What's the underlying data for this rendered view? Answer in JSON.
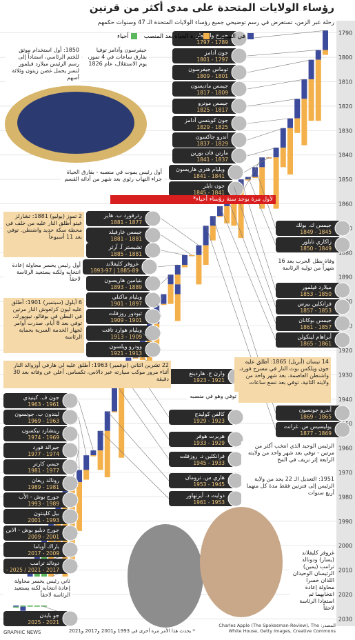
{
  "header": {
    "title": "رؤساء الولايات المتحدة على مدى أكثر من قرنين",
    "subtitle": "رحلة عبر الزمن، تستعرض في رسم توضيحي جميع رؤساء الولايات المتحدة الـ 47 وسنوات حكمهم"
  },
  "legend": [
    {
      "label": "في المنصب",
      "color": "#3d4b9c"
    },
    {
      "label": "فترة الحياة بعد المنصب",
      "color": "#f3b04b"
    },
    {
      "label": "أحياء",
      "color": "#5cb85c"
    }
  ],
  "timeline": {
    "ylim": [
      1785,
      2033
    ],
    "yticks": [
      1790,
      1800,
      1810,
      1820,
      1830,
      1840,
      1850,
      1860,
      1870,
      1880,
      1890,
      1900,
      1910,
      1920,
      1930,
      1940,
      1950,
      1960,
      1970,
      1980,
      1990,
      2000,
      2010,
      2020,
      2030
    ]
  },
  "presidents": [
    {
      "name": "جورج واشنطن",
      "years": "1789 - 1797",
      "terms": [
        [
          1789,
          1797
        ]
      ],
      "died": 1799
    },
    {
      "name": "جون آدامز",
      "years": "1797 - 1801",
      "terms": [
        [
          1797,
          1801
        ]
      ],
      "died": 1826
    },
    {
      "name": "توماس جيفرسون",
      "years": "1801 - 1809",
      "terms": [
        [
          1801,
          1809
        ]
      ],
      "died": 1826
    },
    {
      "name": "جيمس ماديسون",
      "years": "1809 - 1817",
      "terms": [
        [
          1809,
          1817
        ]
      ],
      "died": 1836
    },
    {
      "name": "جيمس مونرو",
      "years": "1817 - 1825",
      "terms": [
        [
          1817,
          1825
        ]
      ],
      "died": 1831
    },
    {
      "name": "جون كوينسي آدامز",
      "years": "1825 - 1829",
      "terms": [
        [
          1825,
          1829
        ]
      ],
      "died": 1848
    },
    {
      "name": "أندرو جاكسون",
      "years": "1829 - 1837",
      "terms": [
        [
          1829,
          1837
        ]
      ],
      "died": 1845
    },
    {
      "name": "مارتن فان بورين",
      "years": "1837 - 1841",
      "terms": [
        [
          1837,
          1841
        ]
      ],
      "died": 1862
    },
    {
      "name": "ويليام هنري هاريسون",
      "years": "1841 - 1841",
      "terms": [
        [
          1841,
          1841
        ]
      ],
      "died": 1841
    },
    {
      "name": "جون تايلر",
      "years": "1841 - 1845",
      "terms": [
        [
          1841,
          1845
        ]
      ],
      "died": 1862
    },
    {
      "name": "جيمس ك. بولك",
      "years": "1845 - 1849",
      "terms": [
        [
          1845,
          1849
        ]
      ],
      "died": 1849
    },
    {
      "name": "زاكاري تايلور",
      "years": "1849 - 1850",
      "terms": [
        [
          1849,
          1850
        ]
      ],
      "died": 1850
    },
    {
      "name": "ميلارد فيلمور",
      "years": "1850 - 1853",
      "terms": [
        [
          1850,
          1853
        ]
      ],
      "died": 1874
    },
    {
      "name": "فرانكلين بيرس",
      "years": "1853 - 1857",
      "terms": [
        [
          1853,
          1857
        ]
      ],
      "died": 1869
    },
    {
      "name": "جيمس بوكانان",
      "years": "1857 - 1861",
      "terms": [
        [
          1857,
          1861
        ]
      ],
      "died": 1868
    },
    {
      "name": "أبراهام لينكولن",
      "years": "1861 - 1865",
      "terms": [
        [
          1861,
          1865
        ]
      ],
      "died": 1865
    },
    {
      "name": "أندرو جونسون",
      "years": "1865 - 1869",
      "terms": [
        [
          1865,
          1869
        ]
      ],
      "died": 1875
    },
    {
      "name": "يوليسيس س. غرانت",
      "years": "1869 - 1877",
      "terms": [
        [
          1869,
          1877
        ]
      ],
      "died": 1885
    },
    {
      "name": "رذرفورد ب. هايز",
      "years": "1877 - 1881",
      "terms": [
        [
          1877,
          1881
        ]
      ],
      "died": 1893
    },
    {
      "name": "جيمس غارفيلد",
      "years": "1881 - 1881",
      "terms": [
        [
          1881,
          1881
        ]
      ],
      "died": 1881
    },
    {
      "name": "تشيستر آ. آرثر",
      "years": "1881 - 1885",
      "terms": [
        [
          1881,
          1885
        ]
      ],
      "died": 1886
    },
    {
      "name": "غروفر كليفلاند",
      "years": "1885-89 | 1893-97",
      "terms": [
        [
          1885,
          1889
        ],
        [
          1893,
          1897
        ]
      ],
      "died": 1908
    },
    {
      "name": "بنيامين هاريسون",
      "years": "1889 - 1893",
      "terms": [
        [
          1889,
          1893
        ]
      ],
      "died": 1901
    },
    {
      "name": "ويليام ماكنلي",
      "years": "1897 - 1901",
      "terms": [
        [
          1897,
          1901
        ]
      ],
      "died": 1901
    },
    {
      "name": "ثيودور روزفلت",
      "years": "1901 - 1909",
      "terms": [
        [
          1901,
          1909
        ]
      ],
      "died": 1919
    },
    {
      "name": "ويليام هوارد تافت",
      "years": "1909 - 1913",
      "terms": [
        [
          1909,
          1913
        ]
      ],
      "died": 1930
    },
    {
      "name": "وودرو ويلسون",
      "years": "1913 - 1921",
      "terms": [
        [
          1913,
          1921
        ]
      ],
      "died": 1924
    },
    {
      "name": "وارن ج. هاردينغ",
      "years": "1921 - 1923",
      "terms": [
        [
          1921,
          1923
        ]
      ],
      "died": 1923
    },
    {
      "name": "كالفن كوليدج",
      "years": "1923 - 1929",
      "terms": [
        [
          1923,
          1929
        ]
      ],
      "died": 1933
    },
    {
      "name": "هربرت هوفر",
      "years": "1929 - 1933",
      "terms": [
        [
          1929,
          1933
        ]
      ],
      "died": 1964
    },
    {
      "name": "فرانكلين د. روزفلت",
      "years": "1933 - 1945",
      "terms": [
        [
          1933,
          1945
        ]
      ],
      "died": 1945
    },
    {
      "name": "هاري س. ترومان",
      "years": "1945 - 1953",
      "terms": [
        [
          1945,
          1953
        ]
      ],
      "died": 1972
    },
    {
      "name": "دوايت د. أيزنهاور",
      "years": "1953 - 1961",
      "terms": [
        [
          1953,
          1961
        ]
      ],
      "died": 1969
    },
    {
      "name": "جون ف. كينيدي",
      "years": "1961 - 1963",
      "terms": [
        [
          1961,
          1963
        ]
      ],
      "died": 1963
    },
    {
      "name": "ليندون ب. جونسون",
      "years": "1963 - 1969",
      "terms": [
        [
          1963,
          1969
        ]
      ],
      "died": 1973
    },
    {
      "name": "ريتشارد نيكسون",
      "years": "1969 - 1974",
      "terms": [
        [
          1969,
          1974
        ]
      ],
      "died": 1994
    },
    {
      "name": "جيرالد فورد",
      "years": "1974 - 1977",
      "terms": [
        [
          1974,
          1977
        ]
      ],
      "died": 2006
    },
    {
      "name": "جيمي كارتر",
      "years": "1977 - 1981",
      "terms": [
        [
          1977,
          1981
        ]
      ],
      "died": 2024
    },
    {
      "name": "رونالد ريغان",
      "years": "1981 - 1989",
      "terms": [
        [
          1981,
          1989
        ]
      ],
      "died": 2004
    },
    {
      "name": "جورج بوش - الأب",
      "years": "1989 - 1993",
      "terms": [
        [
          1989,
          1993
        ]
      ],
      "died": 2018
    },
    {
      "name": "بيل كلينتون",
      "years": "1993 - 2001",
      "terms": [
        [
          1993,
          2001
        ]
      ],
      "died": null
    },
    {
      "name": "جورج دبليو بوش - الابن",
      "years": "2001 - 2009",
      "terms": [
        [
          2001,
          2009
        ]
      ],
      "died": null
    },
    {
      "name": "باراك أوباما",
      "years": "2009 - 2017",
      "terms": [
        [
          2009,
          2017
        ]
      ],
      "died": null
    },
    {
      "name": "دونالد ترامب",
      "years": "2017 - 2021 / 2025 -",
      "terms": [
        [
          2017,
          2021
        ],
        [
          2025,
          null
        ]
      ],
      "died": null
    },
    {
      "name": "جو بايدن",
      "years": "2021 - 2025",
      "terms": [
        [
          2021,
          2025
        ]
      ],
      "died": null
    }
  ],
  "annotations": [
    "جيفرسون وآدامز توفيا بفارق ساعات في 4 تموز، يوم الاستقلال، عام 1826",
    "1850: أول استخدام موثق للختم الرئاسي، استناداً إلى رسم الرئيس ميلارد فيلمور لنسر يحمل غصن زيتون وثلاثة أسهم",
    "أول رئيس يموت في منصبه - بفارق الحياة جراء التهاب رئوي بعد شهر من أدائه القسم",
    "2 تموز (يوليو) 1881: تشارلز غيتو أطلق النار عليه من خلف في محطة سكة حديد واشنطن. توفي بعد 11 أسبوعاً",
    "أول رئيس يخسر محاولة إعادة انتخابه ولكنه يستعيد الرئاسة لاحقاً",
    "6 أيلول (سبتمبر) 1901: أطلق عليه ليون كزلغوش النار مرتين في البطن في بوفالو، نيويورك. توفي بعد 8 أيام. صدرت أوامر لجهاز الخدمة السرية بحماية الرئاسة",
    "22 تشرين الثاني (نوفمبر) 1963: أطلق عليه لي هارفي أوزوالد النار أثناء مرور موكب سيارته عبر دالاس، تكساس. أعلن عن وفاته بعد 30 دقيقة",
    "وفاة بطل الحرب بعد 16 شهراً من توليه الرئاسة",
    "14 نيسان (أبريل) 1865: أطلق عليه جون ويلكس بوث النار في مسرح فورد، واشنطن العاصمة. بعد شهر واحد من ولايته الثانية. توفي بعد تسع ساعات",
    "توفي وهو في منصبه",
    "الرئيس الوحيد الذي انتخب أكثر من مرتين - توفي بعد شهر واحد من ولايته الرابعة إثر نزيف في المخ",
    "1951: التعديل الـ 22 يحد من ولاية الرئيس إلى فترتين فقط مدة كل منهما أربع سنوات",
    "غروفر كليفلاند (يسار) ودونالد ترامب (يمين) الرئيسان الوحيدان اللذان خسرا محاولة إعادة انتخابهما ثم استعادا الرئاسة لاحقاً",
    "ثاني رئيس يخسر محاولة إعادة انتخابه لكنه يستعيد الرئاسة لاحقاً"
  ],
  "banner": "لأول مرة يوجد ستة رؤساء أحياء*",
  "footnote": "* يحدث هذا الأمر مرة أخرى في 1993 و2001 و2017 و2021",
  "source": "المصدر: Charles Apple (The Spokesman-Review), The White House, Getty Images, Creative Commons",
  "credit": "GRAPHIC NEWS"
}
